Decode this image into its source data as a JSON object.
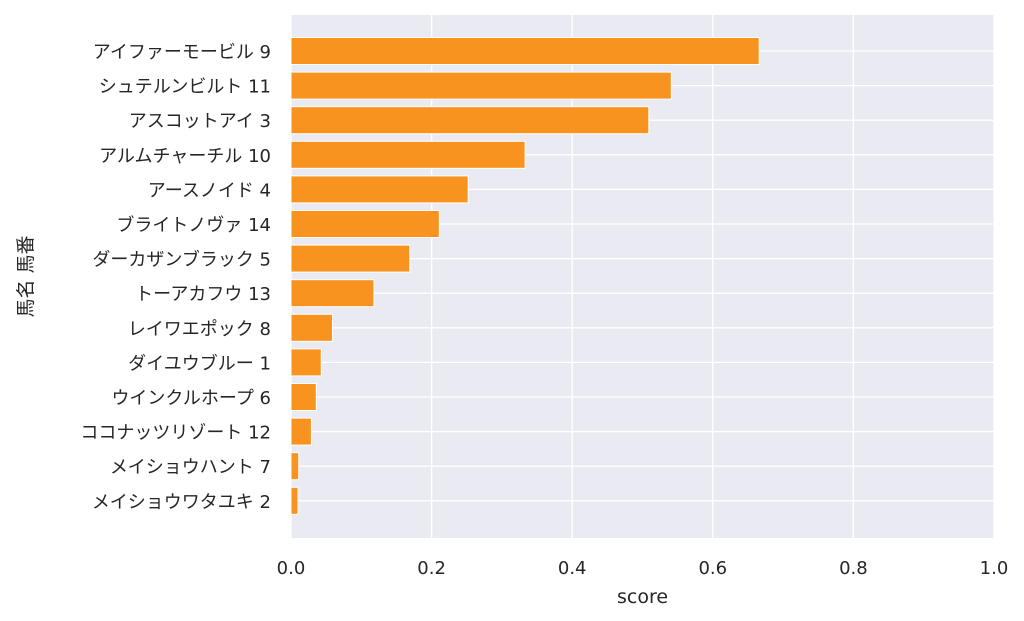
{
  "chart_data": {
    "type": "bar",
    "orientation": "horizontal",
    "xlabel": "score",
    "ylabel": "馬名 馬番",
    "xlim": [
      0.0,
      1.0
    ],
    "xticks": [
      "0.0",
      "0.2",
      "0.4",
      "0.6",
      "0.8",
      "1.0"
    ],
    "grid": true,
    "categories": [
      "アイファーモービル 9",
      "シュテルンビルト 11",
      "アスコットアイ 3",
      "アルムチャーチル 10",
      "アースノイド 4",
      "ブライトノヴァ 14",
      "ダーカザンブラック 5",
      "トーアカフウ 13",
      "レイワエポック 8",
      "ダイユウブルー 1",
      "ウインクルホープ 6",
      "ココナッツリゾート 12",
      "メイショウハント 7",
      "メイショウワタユキ 2"
    ],
    "values": [
      0.666,
      0.541,
      0.509,
      0.333,
      0.252,
      0.211,
      0.169,
      0.118,
      0.059,
      0.043,
      0.036,
      0.029,
      0.011,
      0.01
    ],
    "colors": {
      "bar": "#f7931e",
      "bar_edge": "#ffffff",
      "plot_bg": "#eaeaf2",
      "grid": "#ffffff",
      "text": "#262626"
    }
  }
}
